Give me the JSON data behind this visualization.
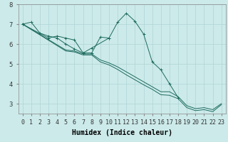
{
  "xlabel": "Humidex (Indice chaleur)",
  "bg_color": "#cceaea",
  "line_color": "#1e6b5e",
  "grid_color": "#b0d4d4",
  "xlim": [
    -0.5,
    23.5
  ],
  "ylim": [
    2.5,
    8.0
  ],
  "yticks": [
    3,
    4,
    5,
    6,
    7,
    8
  ],
  "series": [
    {
      "x": [
        0,
        1,
        2,
        3,
        4,
        5,
        6,
        7,
        8,
        9,
        10,
        11,
        12,
        13,
        14,
        15,
        16,
        17,
        18
      ],
      "y": [
        7.0,
        7.1,
        6.55,
        6.4,
        6.3,
        6.0,
        5.75,
        5.55,
        5.55,
        6.35,
        6.3,
        7.1,
        7.55,
        7.15,
        6.5,
        5.1,
        4.7,
        4.0,
        3.3
      ],
      "marker": true
    },
    {
      "x": [
        0,
        3,
        4,
        5,
        6,
        7,
        8,
        10
      ],
      "y": [
        7.0,
        6.3,
        6.4,
        6.3,
        6.2,
        5.55,
        5.8,
        6.3
      ],
      "marker": true
    },
    {
      "x": [
        0,
        5,
        6,
        7,
        8,
        9,
        10,
        11,
        12,
        13,
        14,
        15,
        16,
        17,
        18,
        19,
        20,
        21,
        22,
        23
      ],
      "y": [
        7.0,
        5.7,
        5.65,
        5.5,
        5.5,
        5.2,
        5.05,
        4.85,
        4.6,
        4.35,
        4.1,
        3.85,
        3.6,
        3.6,
        3.35,
        2.9,
        2.75,
        2.8,
        2.7,
        3.0
      ],
      "marker": false
    },
    {
      "x": [
        0,
        5,
        6,
        7,
        8,
        9,
        10,
        11,
        12,
        13,
        14,
        15,
        16,
        17,
        18,
        19,
        20,
        21,
        22,
        23
      ],
      "y": [
        7.0,
        5.65,
        5.6,
        5.45,
        5.45,
        5.1,
        4.95,
        4.72,
        4.45,
        4.2,
        3.95,
        3.72,
        3.45,
        3.42,
        3.25,
        2.8,
        2.65,
        2.7,
        2.6,
        2.95
      ],
      "marker": false
    }
  ],
  "fontsize_xlabel": 7,
  "tick_fontsize": 6
}
